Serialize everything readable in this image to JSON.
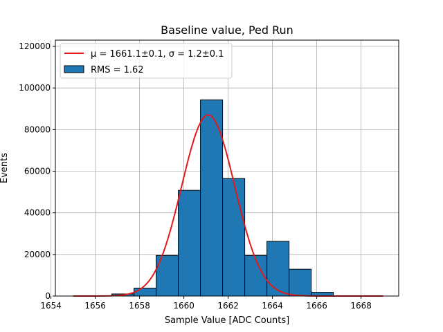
{
  "chart_data": {
    "type": "bar",
    "title": "Baseline value, Ped Run",
    "xlabel": "Sample Value [ADC Counts]",
    "ylabel": "Events",
    "xlim": [
      1654.2,
      1669.7
    ],
    "ylim": [
      0,
      123000
    ],
    "grid": true,
    "legend_position": "top-left",
    "x_ticks": [
      1654,
      1656,
      1658,
      1660,
      1662,
      1664,
      1666,
      1668
    ],
    "y_ticks": [
      0,
      20000,
      40000,
      60000,
      80000,
      100000,
      120000
    ],
    "bins": [
      {
        "left": 1656.75,
        "right": 1657.75,
        "value": 1000
      },
      {
        "left": 1657.75,
        "right": 1658.75,
        "value": 3800
      },
      {
        "left": 1658.75,
        "right": 1659.75,
        "value": 19500
      },
      {
        "left": 1659.75,
        "right": 1660.75,
        "value": 50800
      },
      {
        "left": 1660.75,
        "right": 1661.75,
        "value": 94300
      },
      {
        "left": 1661.75,
        "right": 1662.75,
        "value": 56500
      },
      {
        "left": 1662.75,
        "right": 1663.75,
        "value": 19500
      },
      {
        "left": 1663.75,
        "right": 1664.75,
        "value": 26300
      },
      {
        "left": 1664.75,
        "right": 1665.75,
        "value": 12900
      },
      {
        "left": 1665.75,
        "right": 1666.75,
        "value": 1800
      }
    ],
    "fit": {
      "label": "μ = 1661.1±0.1, σ = 1.2±0.1",
      "mu": 1661.1,
      "sigma": 1.2,
      "amplitude": 87000,
      "x_range": [
        1655,
        1669
      ]
    },
    "histogram_label": "RMS = 1.62",
    "colors": {
      "bar": "#1f77b4",
      "fit": "#e31a1c",
      "grid": "#b0b0b0",
      "edge": "#000000"
    }
  }
}
